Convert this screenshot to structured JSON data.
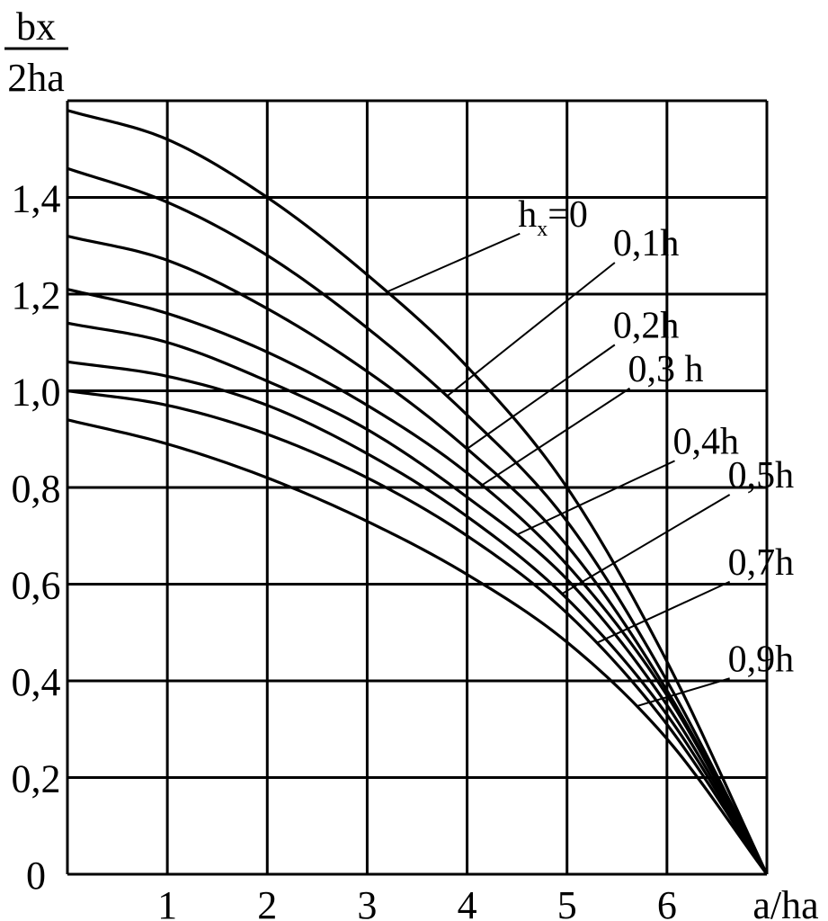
{
  "chart_data": {
    "type": "line",
    "ylabel_numerator": "bx",
    "ylabel_denominator": "2ha",
    "xlabel": "a/ha",
    "xlim": [
      0,
      7
    ],
    "ylim": [
      0,
      1.6
    ],
    "grid": true,
    "x_ticks": [
      "1",
      "2",
      "3",
      "4",
      "5",
      "6"
    ],
    "y_ticks": [
      {
        "value": 0,
        "label": "0"
      },
      {
        "value": 0.2,
        "label": "0,2"
      },
      {
        "value": 0.4,
        "label": "0,4"
      },
      {
        "value": 0.6,
        "label": "0,6"
      },
      {
        "value": 0.8,
        "label": "0,8"
      },
      {
        "value": 1.0,
        "label": "1,0"
      },
      {
        "value": 1.2,
        "label": "1,2"
      },
      {
        "value": 1.4,
        "label": "1,4"
      }
    ],
    "series": [
      {
        "name": "hx=0",
        "x": [
          0,
          1,
          2,
          3,
          4,
          5,
          6,
          7
        ],
        "y": [
          1.58,
          1.52,
          1.4,
          1.24,
          1.05,
          0.8,
          0.44,
          0.0
        ]
      },
      {
        "name": "0,1h",
        "x": [
          0,
          1,
          2,
          3,
          4,
          5,
          6,
          7
        ],
        "y": [
          1.46,
          1.39,
          1.28,
          1.13,
          0.95,
          0.73,
          0.4,
          0.0
        ]
      },
      {
        "name": "0,2h",
        "x": [
          0,
          1,
          2,
          3,
          4,
          5,
          6,
          7
        ],
        "y": [
          1.32,
          1.27,
          1.17,
          1.04,
          0.88,
          0.68,
          0.38,
          0.0
        ]
      },
      {
        "name": "0,3 h",
        "x": [
          0,
          1,
          2,
          3,
          4,
          5,
          6,
          7
        ],
        "y": [
          1.21,
          1.16,
          1.08,
          0.97,
          0.83,
          0.64,
          0.37,
          0.0
        ]
      },
      {
        "name": "0,4h",
        "x": [
          0,
          1,
          2,
          3,
          4,
          5,
          6,
          7
        ],
        "y": [
          1.14,
          1.1,
          1.02,
          0.92,
          0.78,
          0.61,
          0.35,
          0.0
        ]
      },
      {
        "name": "0,5h",
        "x": [
          0,
          1,
          2,
          3,
          4,
          5,
          6,
          7
        ],
        "y": [
          1.06,
          1.03,
          0.97,
          0.87,
          0.74,
          0.57,
          0.33,
          0.0
        ]
      },
      {
        "name": "0,7h",
        "x": [
          0,
          1,
          2,
          3,
          4,
          5,
          6,
          7
        ],
        "y": [
          1.0,
          0.97,
          0.91,
          0.82,
          0.7,
          0.54,
          0.31,
          0.0
        ]
      },
      {
        "name": "0,9h",
        "x": [
          0,
          1,
          2,
          3,
          4,
          5,
          6,
          7
        ],
        "y": [
          0.94,
          0.89,
          0.82,
          0.73,
          0.62,
          0.48,
          0.28,
          0.0
        ]
      }
    ],
    "labels": [
      {
        "series": 0,
        "text_main": "h",
        "text_sub": "x",
        "text_rest": "=0",
        "leader_x": 3.2,
        "label_x": 4.6,
        "label_y": 1.34
      },
      {
        "series": 1,
        "text_main": "0,1h",
        "leader_x": 3.8,
        "label_x": 5.55,
        "label_y": 1.28
      },
      {
        "series": 2,
        "text_main": "0,2h",
        "leader_x": 4.0,
        "label_x": 5.55,
        "label_y": 1.11
      },
      {
        "series": 3,
        "text_main": "0,3 h",
        "leader_x": 4.15,
        "label_x": 5.7,
        "label_y": 1.02
      },
      {
        "series": 4,
        "text_main": "0,4h",
        "leader_x": 4.5,
        "label_x": 6.15,
        "label_y": 0.87
      },
      {
        "series": 5,
        "text_main": "0,5h",
        "leader_x": 4.95,
        "label_x": 6.7,
        "label_y": 0.8
      },
      {
        "series": 6,
        "text_main": "0,7h",
        "leader_x": 5.3,
        "label_x": 6.7,
        "label_y": 0.62
      },
      {
        "series": 7,
        "text_main": "0,9h",
        "leader_x": 5.7,
        "label_x": 6.7,
        "label_y": 0.42
      }
    ]
  }
}
